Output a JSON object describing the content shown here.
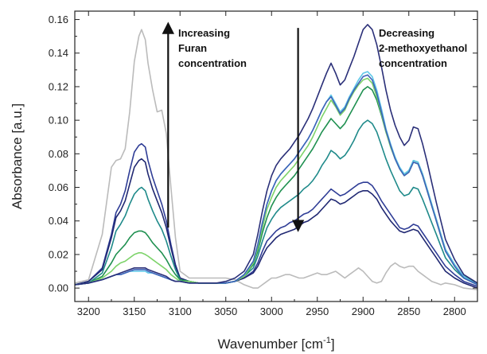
{
  "chart_data": {
    "type": "line",
    "title": "",
    "xlabel": {
      "base": "Wavenumber [cm",
      "sup": "-1",
      "close": "]"
    },
    "ylabel": "Absorbance [a.u.]",
    "xlim": [
      3215,
      2775
    ],
    "ylim": [
      -0.008,
      0.165
    ],
    "x_reversed": true,
    "x_ticks": [
      3200,
      3150,
      3100,
      3050,
      3000,
      2950,
      2900,
      2850,
      2800
    ],
    "y_ticks": [
      0.0,
      0.02,
      0.04,
      0.06,
      0.08,
      0.1,
      0.12,
      0.14,
      0.16
    ],
    "y_tick_labels": [
      "0.00",
      "0.02",
      "0.04",
      "0.06",
      "0.08",
      "0.10",
      "0.12",
      "0.14",
      "0.16"
    ],
    "grid": false,
    "annotations": [
      {
        "lines": [
          "Increasing",
          "Furan",
          "concentration"
        ],
        "arrow": "up",
        "arrow_x": 3113,
        "arrow_from": 0.036,
        "arrow_to": 0.155
      },
      {
        "lines": [
          "Decreasing",
          "2-methoxyethanol",
          "concentration"
        ],
        "arrow": "down",
        "arrow_x": 2971,
        "arrow_from": 0.155,
        "arrow_to": 0.037
      }
    ],
    "x": [
      3215,
      3200,
      3185,
      3175,
      3170,
      3165,
      3160,
      3155,
      3150,
      3145,
      3142,
      3138,
      3135,
      3130,
      3125,
      3120,
      3115,
      3110,
      3105,
      3100,
      3090,
      3080,
      3070,
      3060,
      3050,
      3040,
      3030,
      3020,
      3015,
      3010,
      3005,
      3000,
      2995,
      2990,
      2985,
      2980,
      2975,
      2970,
      2965,
      2960,
      2955,
      2950,
      2945,
      2940,
      2935,
      2930,
      2925,
      2920,
      2915,
      2910,
      2905,
      2900,
      2895,
      2890,
      2885,
      2880,
      2875,
      2870,
      2865,
      2860,
      2855,
      2850,
      2845,
      2840,
      2835,
      2830,
      2825,
      2820,
      2815,
      2810,
      2800,
      2790,
      2775
    ],
    "series": [
      {
        "color": "#bbbbbb",
        "values": [
          0.003,
          0.005,
          0.032,
          0.072,
          0.076,
          0.077,
          0.083,
          0.105,
          0.135,
          0.15,
          0.154,
          0.148,
          0.134,
          0.118,
          0.105,
          0.106,
          0.092,
          0.06,
          0.03,
          0.01,
          0.006,
          0.006,
          0.006,
          0.006,
          0.006,
          0.005,
          0.002,
          0.0,
          0.0,
          0.002,
          0.004,
          0.006,
          0.006,
          0.007,
          0.008,
          0.008,
          0.007,
          0.006,
          0.006,
          0.007,
          0.008,
          0.009,
          0.008,
          0.008,
          0.009,
          0.01,
          0.008,
          0.006,
          0.008,
          0.01,
          0.012,
          0.01,
          0.007,
          0.004,
          0.003,
          0.004,
          0.009,
          0.013,
          0.015,
          0.013,
          0.012,
          0.013,
          0.013,
          0.01,
          0.008,
          0.006,
          0.004,
          0.003,
          0.002,
          0.003,
          0.002,
          0.0,
          -0.001
        ]
      },
      {
        "color": "#2f3d96",
        "values": [
          0.002,
          0.004,
          0.012,
          0.032,
          0.045,
          0.05,
          0.058,
          0.07,
          0.081,
          0.085,
          0.086,
          0.084,
          0.076,
          0.066,
          0.058,
          0.05,
          0.04,
          0.026,
          0.014,
          0.006,
          0.004,
          0.003,
          0.003,
          0.003,
          0.003,
          0.004,
          0.006,
          0.01,
          0.015,
          0.022,
          0.028,
          0.031,
          0.034,
          0.036,
          0.037,
          0.039,
          0.04,
          0.042,
          0.044,
          0.045,
          0.047,
          0.05,
          0.053,
          0.056,
          0.059,
          0.057,
          0.055,
          0.056,
          0.058,
          0.06,
          0.062,
          0.063,
          0.063,
          0.061,
          0.057,
          0.052,
          0.048,
          0.044,
          0.04,
          0.036,
          0.035,
          0.036,
          0.038,
          0.037,
          0.033,
          0.029,
          0.025,
          0.021,
          0.017,
          0.013,
          0.008,
          0.004,
          0.001
        ]
      },
      {
        "color": "#202872",
        "values": [
          0.002,
          0.004,
          0.011,
          0.03,
          0.042,
          0.046,
          0.052,
          0.062,
          0.072,
          0.076,
          0.077,
          0.075,
          0.068,
          0.059,
          0.052,
          0.045,
          0.036,
          0.024,
          0.013,
          0.006,
          0.004,
          0.003,
          0.003,
          0.003,
          0.003,
          0.004,
          0.006,
          0.009,
          0.013,
          0.019,
          0.024,
          0.027,
          0.03,
          0.032,
          0.033,
          0.034,
          0.035,
          0.037,
          0.039,
          0.04,
          0.042,
          0.044,
          0.047,
          0.05,
          0.053,
          0.052,
          0.05,
          0.051,
          0.053,
          0.055,
          0.057,
          0.058,
          0.058,
          0.056,
          0.053,
          0.048,
          0.044,
          0.04,
          0.037,
          0.034,
          0.033,
          0.034,
          0.035,
          0.034,
          0.03,
          0.026,
          0.022,
          0.018,
          0.014,
          0.01,
          0.006,
          0.003,
          0.0
        ]
      },
      {
        "color": "#1f8a8a",
        "values": [
          0.002,
          0.003,
          0.009,
          0.024,
          0.034,
          0.038,
          0.043,
          0.05,
          0.056,
          0.059,
          0.06,
          0.058,
          0.053,
          0.046,
          0.04,
          0.035,
          0.028,
          0.019,
          0.011,
          0.005,
          0.004,
          0.003,
          0.003,
          0.003,
          0.003,
          0.004,
          0.007,
          0.012,
          0.019,
          0.028,
          0.036,
          0.041,
          0.045,
          0.048,
          0.05,
          0.052,
          0.054,
          0.056,
          0.059,
          0.061,
          0.064,
          0.068,
          0.073,
          0.077,
          0.082,
          0.08,
          0.077,
          0.079,
          0.083,
          0.088,
          0.094,
          0.098,
          0.1,
          0.098,
          0.093,
          0.085,
          0.077,
          0.07,
          0.064,
          0.058,
          0.055,
          0.056,
          0.06,
          0.059,
          0.053,
          0.046,
          0.039,
          0.032,
          0.025,
          0.018,
          0.011,
          0.006,
          0.002
        ]
      },
      {
        "color": "#1f9050",
        "values": [
          0.002,
          0.003,
          0.007,
          0.015,
          0.02,
          0.023,
          0.026,
          0.03,
          0.033,
          0.034,
          0.034,
          0.033,
          0.031,
          0.027,
          0.024,
          0.021,
          0.017,
          0.012,
          0.008,
          0.005,
          0.004,
          0.003,
          0.003,
          0.003,
          0.003,
          0.004,
          0.007,
          0.014,
          0.022,
          0.033,
          0.042,
          0.049,
          0.054,
          0.058,
          0.061,
          0.064,
          0.067,
          0.071,
          0.075,
          0.079,
          0.083,
          0.088,
          0.093,
          0.097,
          0.101,
          0.098,
          0.095,
          0.098,
          0.103,
          0.108,
          0.113,
          0.118,
          0.12,
          0.118,
          0.112,
          0.103,
          0.093,
          0.085,
          0.078,
          0.071,
          0.068,
          0.07,
          0.076,
          0.075,
          0.068,
          0.059,
          0.05,
          0.041,
          0.032,
          0.023,
          0.014,
          0.007,
          0.003
        ]
      },
      {
        "color": "#7dd36a",
        "values": [
          0.002,
          0.003,
          0.006,
          0.01,
          0.013,
          0.015,
          0.016,
          0.018,
          0.02,
          0.021,
          0.021,
          0.02,
          0.019,
          0.017,
          0.015,
          0.013,
          0.011,
          0.008,
          0.006,
          0.004,
          0.004,
          0.003,
          0.003,
          0.003,
          0.003,
          0.004,
          0.007,
          0.015,
          0.024,
          0.036,
          0.047,
          0.054,
          0.06,
          0.064,
          0.067,
          0.07,
          0.073,
          0.077,
          0.081,
          0.085,
          0.09,
          0.096,
          0.102,
          0.107,
          0.112,
          0.108,
          0.103,
          0.106,
          0.112,
          0.117,
          0.121,
          0.124,
          0.125,
          0.122,
          0.114,
          0.104,
          0.093,
          0.084,
          0.077,
          0.071,
          0.067,
          0.069,
          0.075,
          0.074,
          0.067,
          0.058,
          0.049,
          0.04,
          0.031,
          0.022,
          0.013,
          0.006,
          0.002
        ]
      },
      {
        "color": "#5fc8e8",
        "values": [
          0.002,
          0.003,
          0.005,
          0.007,
          0.008,
          0.008,
          0.009,
          0.01,
          0.01,
          0.01,
          0.01,
          0.01,
          0.009,
          0.009,
          0.008,
          0.007,
          0.006,
          0.005,
          0.004,
          0.004,
          0.003,
          0.003,
          0.003,
          0.003,
          0.003,
          0.004,
          0.008,
          0.016,
          0.026,
          0.039,
          0.05,
          0.058,
          0.064,
          0.068,
          0.071,
          0.074,
          0.077,
          0.081,
          0.085,
          0.089,
          0.094,
          0.1,
          0.106,
          0.111,
          0.115,
          0.11,
          0.105,
          0.108,
          0.114,
          0.119,
          0.124,
          0.128,
          0.129,
          0.126,
          0.118,
          0.107,
          0.095,
          0.086,
          0.078,
          0.072,
          0.068,
          0.07,
          0.076,
          0.075,
          0.068,
          0.059,
          0.05,
          0.041,
          0.032,
          0.023,
          0.014,
          0.007,
          0.002
        ]
      },
      {
        "color": "#3d62b8",
        "values": [
          0.002,
          0.003,
          0.005,
          0.007,
          0.008,
          0.008,
          0.009,
          0.01,
          0.011,
          0.011,
          0.011,
          0.011,
          0.01,
          0.009,
          0.008,
          0.007,
          0.006,
          0.005,
          0.004,
          0.004,
          0.003,
          0.003,
          0.003,
          0.003,
          0.003,
          0.004,
          0.008,
          0.016,
          0.026,
          0.039,
          0.05,
          0.058,
          0.064,
          0.068,
          0.071,
          0.074,
          0.077,
          0.081,
          0.085,
          0.089,
          0.094,
          0.1,
          0.106,
          0.111,
          0.114,
          0.109,
          0.104,
          0.107,
          0.113,
          0.118,
          0.122,
          0.126,
          0.127,
          0.124,
          0.116,
          0.105,
          0.094,
          0.085,
          0.077,
          0.071,
          0.067,
          0.069,
          0.075,
          0.074,
          0.067,
          0.058,
          0.049,
          0.04,
          0.031,
          0.022,
          0.013,
          0.006,
          0.002
        ]
      },
      {
        "color": "#2a2f78",
        "values": [
          0.002,
          0.003,
          0.005,
          0.007,
          0.008,
          0.009,
          0.01,
          0.011,
          0.012,
          0.012,
          0.012,
          0.012,
          0.011,
          0.01,
          0.009,
          0.008,
          0.007,
          0.005,
          0.004,
          0.004,
          0.003,
          0.003,
          0.003,
          0.003,
          0.004,
          0.006,
          0.01,
          0.02,
          0.032,
          0.046,
          0.058,
          0.067,
          0.073,
          0.077,
          0.08,
          0.083,
          0.087,
          0.091,
          0.096,
          0.101,
          0.107,
          0.114,
          0.121,
          0.128,
          0.134,
          0.128,
          0.121,
          0.124,
          0.131,
          0.138,
          0.146,
          0.154,
          0.157,
          0.154,
          0.145,
          0.132,
          0.118,
          0.106,
          0.097,
          0.09,
          0.085,
          0.088,
          0.096,
          0.095,
          0.086,
          0.075,
          0.063,
          0.051,
          0.04,
          0.029,
          0.017,
          0.008,
          0.003
        ]
      }
    ]
  }
}
